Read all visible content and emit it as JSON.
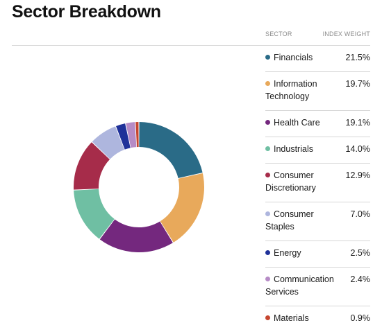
{
  "header": {
    "title": "Sector Breakdown",
    "col_sector": "SECTOR",
    "col_weight": "INDEX WEIGHT"
  },
  "chart_data": {
    "type": "pie",
    "donut": true,
    "unit": "%",
    "slices": [
      {
        "label": "Financials",
        "value": 21.5,
        "display": "21.5%",
        "color": "#2a6b87"
      },
      {
        "label": "Information Technology",
        "value": 19.7,
        "display": "19.7%",
        "color": "#e8a95b"
      },
      {
        "label": "Health Care",
        "value": 19.1,
        "display": "19.1%",
        "color": "#74287e"
      },
      {
        "label": "Industrials",
        "value": 14.0,
        "display": "14.0%",
        "color": "#6fbfa3"
      },
      {
        "label": "Consumer Discretionary",
        "value": 12.9,
        "display": "12.9%",
        "color": "#a62c4a"
      },
      {
        "label": "Consumer Staples",
        "value": 7.0,
        "display": "7.0%",
        "color": "#aeb6de"
      },
      {
        "label": "Energy",
        "value": 2.5,
        "display": "2.5%",
        "color": "#1f3199"
      },
      {
        "label": "Communication Services",
        "value": 2.4,
        "display": "2.4%",
        "color": "#b68bc6"
      },
      {
        "label": "Materials",
        "value": 0.9,
        "display": "0.9%",
        "color": "#c6462f"
      }
    ]
  }
}
